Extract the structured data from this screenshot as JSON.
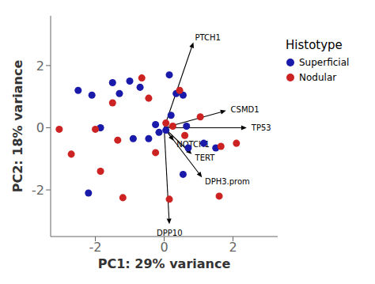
{
  "chart_data": {
    "type": "scatter",
    "xlabel": "PC1: 29% variance",
    "ylabel": "PC2: 18% variance",
    "xlim": [
      -3.3,
      3.3
    ],
    "ylim": [
      -3.5,
      3.6
    ],
    "xticks": [
      -2,
      0,
      2
    ],
    "yticks": [
      -2,
      0,
      2
    ],
    "grid": false,
    "legend": "right",
    "legend_title": "Histotype",
    "origin": [
      0,
      0
    ],
    "series": [
      {
        "name": "Superficial",
        "color": "#1a1aaa",
        "marker": "circle",
        "values": [
          [
            -2.5,
            1.2
          ],
          [
            -2.1,
            1.05
          ],
          [
            -1.85,
            0.0
          ],
          [
            -1.5,
            1.45
          ],
          [
            -1.3,
            1.1
          ],
          [
            -1.0,
            1.5
          ],
          [
            -0.9,
            -0.35
          ],
          [
            -0.7,
            1.3
          ],
          [
            -0.45,
            -0.35
          ],
          [
            -0.25,
            0.1
          ],
          [
            -0.15,
            -0.15
          ],
          [
            0.05,
            -0.08
          ],
          [
            0.15,
            1.7
          ],
          [
            0.2,
            0.4
          ],
          [
            0.35,
            1.1
          ],
          [
            0.55,
            1.05
          ],
          [
            0.65,
            0.05
          ],
          [
            0.7,
            -0.65
          ],
          [
            1.15,
            -0.5
          ],
          [
            1.5,
            -0.65
          ],
          [
            -2.2,
            -2.1
          ],
          [
            0.55,
            -1.5
          ]
        ]
      },
      {
        "name": "Nodular",
        "color": "#cc2222",
        "marker": "circle",
        "values": [
          [
            -3.05,
            -0.05
          ],
          [
            -2.7,
            -0.85
          ],
          [
            -2.0,
            -0.05
          ],
          [
            -1.85,
            -1.4
          ],
          [
            -1.5,
            0.8
          ],
          [
            -1.35,
            -0.4
          ],
          [
            -1.2,
            -2.25
          ],
          [
            -0.65,
            1.6
          ],
          [
            -0.45,
            0.95
          ],
          [
            -0.25,
            -0.8
          ],
          [
            0.05,
            0.15
          ],
          [
            0.15,
            -2.3
          ],
          [
            0.45,
            1.2
          ],
          [
            0.6,
            -0.25
          ],
          [
            1.05,
            0.35
          ],
          [
            1.6,
            -2.2
          ],
          [
            1.65,
            -0.6
          ],
          [
            0.25,
            0.05
          ],
          [
            2.1,
            -0.5
          ]
        ]
      }
    ],
    "annotations": [
      {
        "text": "PTCH1",
        "x": 0.85,
        "y": 2.75
      },
      {
        "text": "CSMD1",
        "x": 1.8,
        "y": 0.55
      },
      {
        "text": "TP53",
        "x": 2.4,
        "y": 0.0
      },
      {
        "text": "NOTCH1",
        "x": 0.28,
        "y": -0.42
      },
      {
        "text": "TERT",
        "x": 0.8,
        "y": -0.85
      },
      {
        "text": "DPH3.prom",
        "x": 1.1,
        "y": -1.6
      },
      {
        "text": "DPP10",
        "x": 0.15,
        "y": -3.1
      }
    ]
  }
}
